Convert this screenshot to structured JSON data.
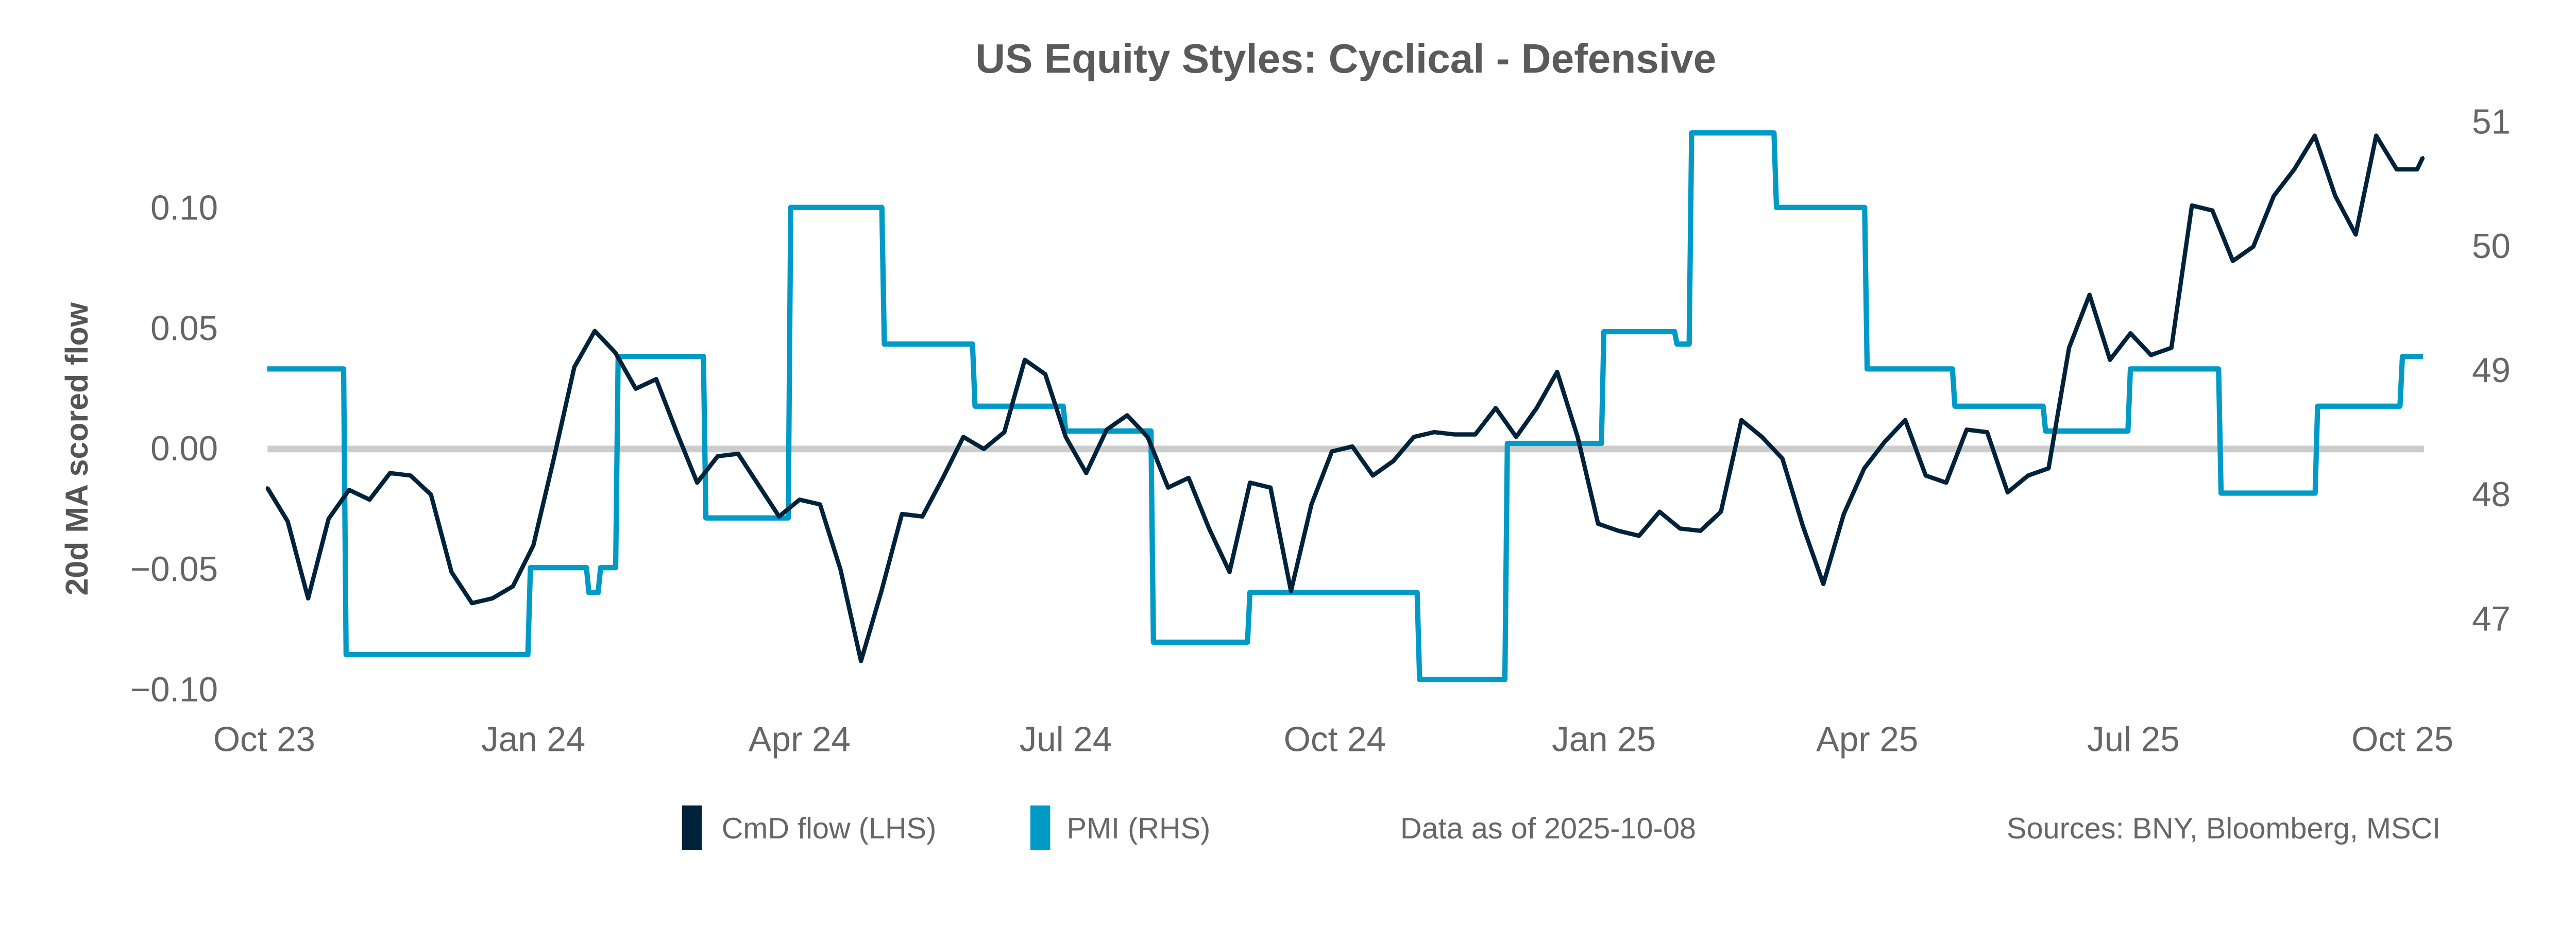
{
  "chart_data": {
    "type": "line",
    "title": "US Equity Styles:  Cyclical - Defensive",
    "ylabel_left": "20d MA scored flow",
    "ylim_left": [
      -0.1,
      0.14
    ],
    "ylim_right": [
      46.3,
      51.2
    ],
    "yticks_left": [
      "0.10",
      "0.05",
      "0.00",
      "−0.05",
      "−0.10"
    ],
    "yticks_left_values": [
      0.1,
      0.05,
      0.0,
      -0.05,
      -0.1
    ],
    "yticks_right": [
      "51",
      "50",
      "49",
      "48",
      "47"
    ],
    "yticks_right_values": [
      51,
      50,
      49,
      48,
      47
    ],
    "xticks": [
      "Oct 23",
      "Jan 24",
      "Apr 24",
      "Jul 24",
      "Oct 24",
      "Jan 25",
      "Apr 25",
      "Jul 25",
      "Oct 25"
    ],
    "xticks_dates": [
      "2023-10-01",
      "2024-01-01",
      "2024-04-01",
      "2024-07-01",
      "2024-10-01",
      "2025-01-01",
      "2025-04-01",
      "2025-07-01",
      "2025-10-01"
    ],
    "zero_line": true,
    "grid": false,
    "legend_placement": "bottom",
    "colors": {
      "flow": "#00223a",
      "pmi": "#009ac7",
      "zero_line": "#cccccc",
      "text": "#666666"
    },
    "series": [
      {
        "name": "CmD flow (LHS)",
        "axis": "left",
        "x": [
          "2023-10-02",
          "2023-10-09",
          "2023-10-16",
          "2023-10-23",
          "2023-10-30",
          "2023-11-06",
          "2023-11-13",
          "2023-11-20",
          "2023-11-27",
          "2023-12-04",
          "2023-12-11",
          "2023-12-18",
          "2023-12-25",
          "2024-01-01",
          "2024-01-08",
          "2024-01-15",
          "2024-01-22",
          "2024-01-29",
          "2024-02-05",
          "2024-02-12",
          "2024-02-19",
          "2024-02-26",
          "2024-03-04",
          "2024-03-11",
          "2024-03-18",
          "2024-03-25",
          "2024-04-01",
          "2024-04-08",
          "2024-04-15",
          "2024-04-22",
          "2024-04-29",
          "2024-05-06",
          "2024-05-13",
          "2024-05-20",
          "2024-05-27",
          "2024-06-03",
          "2024-06-10",
          "2024-06-17",
          "2024-06-24",
          "2024-07-01",
          "2024-07-08",
          "2024-07-15",
          "2024-07-22",
          "2024-07-29",
          "2024-08-05",
          "2024-08-12",
          "2024-08-19",
          "2024-08-26",
          "2024-09-02",
          "2024-09-09",
          "2024-09-16",
          "2024-09-23",
          "2024-09-30",
          "2024-10-07",
          "2024-10-14",
          "2024-10-21",
          "2024-10-28",
          "2024-11-04",
          "2024-11-11",
          "2024-11-18",
          "2024-11-25",
          "2024-12-02",
          "2024-12-09",
          "2024-12-16",
          "2024-12-23",
          "2024-12-30",
          "2025-01-06",
          "2025-01-13",
          "2025-01-20",
          "2025-01-27",
          "2025-02-03",
          "2025-02-10",
          "2025-02-17",
          "2025-02-24",
          "2025-03-03",
          "2025-03-10",
          "2025-03-17",
          "2025-03-24",
          "2025-03-31",
          "2025-04-07",
          "2025-04-14",
          "2025-04-21",
          "2025-04-28",
          "2025-05-05",
          "2025-05-12",
          "2025-05-19",
          "2025-05-26",
          "2025-06-02",
          "2025-06-09",
          "2025-06-16",
          "2025-06-23",
          "2025-06-30",
          "2025-07-07",
          "2025-07-14",
          "2025-07-21",
          "2025-07-28",
          "2025-08-04",
          "2025-08-11",
          "2025-08-18",
          "2025-08-25",
          "2025-09-01",
          "2025-09-08",
          "2025-09-15",
          "2025-09-22",
          "2025-09-29",
          "2025-10-06",
          "2025-10-08"
        ],
        "values": [
          -0.016,
          -0.03,
          -0.062,
          -0.029,
          -0.017,
          -0.021,
          -0.01,
          -0.011,
          -0.019,
          -0.051,
          -0.064,
          -0.062,
          -0.057,
          -0.04,
          -0.004,
          0.034,
          0.049,
          0.04,
          0.025,
          0.029,
          0.007,
          -0.014,
          -0.003,
          -0.002,
          -0.015,
          -0.028,
          -0.021,
          -0.023,
          -0.05,
          -0.088,
          -0.059,
          -0.027,
          -0.028,
          -0.012,
          0.005,
          0.0,
          0.007,
          0.037,
          0.031,
          0.005,
          -0.01,
          0.008,
          0.014,
          0.005,
          -0.016,
          -0.012,
          -0.033,
          -0.051,
          -0.014,
          -0.016,
          -0.059,
          -0.023,
          -0.001,
          0.001,
          -0.011,
          -0.005,
          0.005,
          0.007,
          0.006,
          0.006,
          0.017,
          0.005,
          0.017,
          0.032,
          0.005,
          -0.031,
          -0.034,
          -0.036,
          -0.026,
          -0.033,
          -0.034,
          -0.026,
          0.012,
          0.005,
          -0.004,
          -0.032,
          -0.056,
          -0.027,
          -0.008,
          0.003,
          0.012,
          -0.011,
          -0.014,
          0.008,
          0.007,
          -0.018,
          -0.011,
          -0.008,
          0.042,
          0.064,
          0.037,
          0.048,
          0.039,
          0.042,
          0.101,
          0.099,
          0.078,
          0.084,
          0.105,
          0.116,
          0.13,
          0.105,
          0.089,
          0.13,
          0.116,
          0.116,
          0.121
        ]
      },
      {
        "name": "PMI (RHS)",
        "axis": "right",
        "step": true,
        "x": [
          "2023-10-02",
          "2023-10-29",
          "2023-12-31",
          "2024-01-20",
          "2024-01-24",
          "2024-01-30",
          "2024-02-29",
          "2024-03-29",
          "2024-04-30",
          "2024-05-31",
          "2024-07-01",
          "2024-07-31",
          "2024-09-02",
          "2024-10-30",
          "2024-11-29",
          "2025-01-01",
          "2025-01-26",
          "2025-01-31",
          "2025-03-01",
          "2025-04-01",
          "2025-05-01",
          "2025-06-01",
          "2025-06-30",
          "2025-07-31",
          "2025-09-02",
          "2025-10-01",
          "2025-10-08"
        ],
        "values": [
          49.0,
          46.7,
          47.4,
          47.2,
          47.4,
          49.1,
          47.8,
          50.3,
          49.2,
          48.7,
          48.5,
          46.8,
          47.2,
          46.5,
          48.4,
          49.3,
          49.2,
          50.9,
          50.3,
          49.0,
          48.7,
          48.5,
          49.0,
          48.0,
          48.7,
          49.1,
          49.1
        ]
      }
    ]
  },
  "footer": {
    "legend": [
      {
        "label": "CmD flow (LHS)",
        "color": "#00223a"
      },
      {
        "label": "PMI (RHS)",
        "color": "#009ac7"
      }
    ],
    "data_as_of": "Data as of 2025-10-08",
    "sources": "Sources:  BNY, Bloomberg, MSCI"
  }
}
